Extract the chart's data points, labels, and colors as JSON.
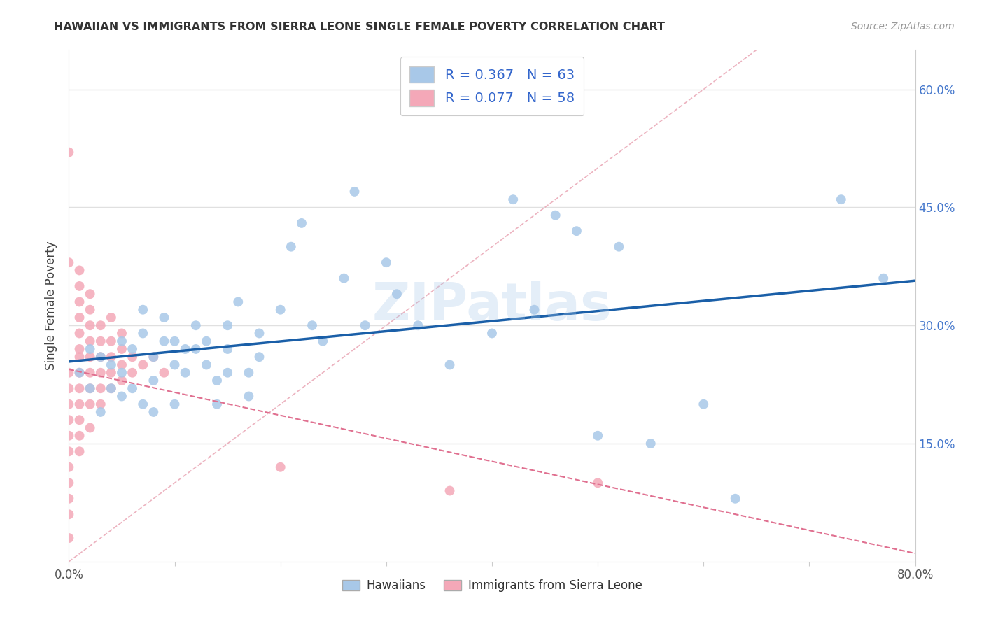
{
  "title": "HAWAIIAN VS IMMIGRANTS FROM SIERRA LEONE SINGLE FEMALE POVERTY CORRELATION CHART",
  "source": "Source: ZipAtlas.com",
  "ylabel": "Single Female Poverty",
  "xlim": [
    0.0,
    0.8
  ],
  "ylim": [
    0.0,
    0.65
  ],
  "xticks": [
    0.0,
    0.1,
    0.2,
    0.3,
    0.4,
    0.5,
    0.6,
    0.7,
    0.8
  ],
  "xticklabels": [
    "0.0%",
    "",
    "",
    "",
    "",
    "",
    "",
    "",
    "80.0%"
  ],
  "ytick_positions": [
    0.15,
    0.3,
    0.45,
    0.6
  ],
  "ytick_labels": [
    "15.0%",
    "30.0%",
    "45.0%",
    "60.0%"
  ],
  "grid_color": "#e0e0e0",
  "hawaiian_color": "#a8c8e8",
  "sierra_leone_color": "#f4a8b8",
  "regression_blue": "#1a5fa8",
  "regression_pink": "#e07090",
  "diagonal_color": "#e8a0b0",
  "legend_R_hawaiian": "R = 0.367",
  "legend_N_hawaiian": "N = 63",
  "legend_R_sierra": "R = 0.077",
  "legend_N_sierra": "N = 58",
  "hawaiian_x": [
    0.01,
    0.02,
    0.02,
    0.03,
    0.03,
    0.04,
    0.04,
    0.05,
    0.05,
    0.05,
    0.06,
    0.06,
    0.07,
    0.07,
    0.07,
    0.08,
    0.08,
    0.08,
    0.09,
    0.09,
    0.1,
    0.1,
    0.1,
    0.11,
    0.11,
    0.12,
    0.12,
    0.13,
    0.13,
    0.14,
    0.14,
    0.15,
    0.15,
    0.15,
    0.16,
    0.17,
    0.17,
    0.18,
    0.18,
    0.2,
    0.21,
    0.22,
    0.23,
    0.24,
    0.26,
    0.27,
    0.28,
    0.3,
    0.31,
    0.33,
    0.36,
    0.4,
    0.42,
    0.44,
    0.46,
    0.48,
    0.5,
    0.52,
    0.55,
    0.6,
    0.63,
    0.73,
    0.77
  ],
  "hawaiian_y": [
    0.24,
    0.27,
    0.22,
    0.26,
    0.19,
    0.25,
    0.22,
    0.28,
    0.24,
    0.21,
    0.27,
    0.22,
    0.32,
    0.29,
    0.2,
    0.26,
    0.23,
    0.19,
    0.31,
    0.28,
    0.28,
    0.25,
    0.2,
    0.27,
    0.24,
    0.3,
    0.27,
    0.28,
    0.25,
    0.23,
    0.2,
    0.3,
    0.27,
    0.24,
    0.33,
    0.24,
    0.21,
    0.29,
    0.26,
    0.32,
    0.4,
    0.43,
    0.3,
    0.28,
    0.36,
    0.47,
    0.3,
    0.38,
    0.34,
    0.3,
    0.25,
    0.29,
    0.46,
    0.32,
    0.44,
    0.42,
    0.16,
    0.4,
    0.15,
    0.2,
    0.08,
    0.46,
    0.36
  ],
  "sierra_x": [
    0.0,
    0.0,
    0.0,
    0.0,
    0.0,
    0.0,
    0.0,
    0.0,
    0.0,
    0.0,
    0.0,
    0.0,
    0.0,
    0.01,
    0.01,
    0.01,
    0.01,
    0.01,
    0.01,
    0.01,
    0.01,
    0.01,
    0.01,
    0.01,
    0.01,
    0.01,
    0.02,
    0.02,
    0.02,
    0.02,
    0.02,
    0.02,
    0.02,
    0.02,
    0.02,
    0.03,
    0.03,
    0.03,
    0.03,
    0.03,
    0.03,
    0.04,
    0.04,
    0.04,
    0.04,
    0.04,
    0.05,
    0.05,
    0.05,
    0.05,
    0.06,
    0.06,
    0.07,
    0.08,
    0.09,
    0.2,
    0.36,
    0.5
  ],
  "sierra_y": [
    0.03,
    0.06,
    0.08,
    0.1,
    0.12,
    0.14,
    0.16,
    0.18,
    0.2,
    0.22,
    0.24,
    0.52,
    0.38,
    0.14,
    0.16,
    0.18,
    0.2,
    0.22,
    0.24,
    0.26,
    0.27,
    0.29,
    0.31,
    0.33,
    0.35,
    0.37,
    0.17,
    0.2,
    0.22,
    0.24,
    0.26,
    0.28,
    0.3,
    0.32,
    0.34,
    0.2,
    0.22,
    0.24,
    0.26,
    0.28,
    0.3,
    0.22,
    0.24,
    0.26,
    0.28,
    0.31,
    0.23,
    0.25,
    0.27,
    0.29,
    0.24,
    0.26,
    0.25,
    0.26,
    0.24,
    0.12,
    0.09,
    0.1
  ]
}
